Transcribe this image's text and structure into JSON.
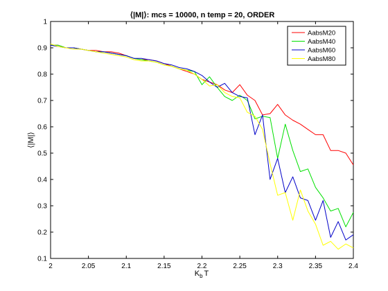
{
  "chart_data": {
    "type": "line",
    "title": "⟨|M|⟩: mcs = 10000, n temp = 20, ORDER",
    "xlabel": "K",
    "xlabel_sub": "b",
    "xlabel_suffix": "T",
    "ylabel": "⟨|M|⟩",
    "xlim": [
      2,
      2.4
    ],
    "ylim": [
      0.1,
      1
    ],
    "grid": false,
    "legend_position": "top-right",
    "x_ticks": [
      "2",
      "2.05",
      "2.1",
      "2.15",
      "2.2",
      "2.25",
      "2.3",
      "2.35",
      "2.4"
    ],
    "y_ticks": [
      "0.1",
      "0.2",
      "0.3",
      "0.4",
      "0.5",
      "0.6",
      "0.7",
      "0.8",
      "0.9",
      "1"
    ],
    "x": [
      2.0,
      2.01,
      2.02,
      2.03,
      2.04,
      2.05,
      2.06,
      2.07,
      2.08,
      2.09,
      2.1,
      2.11,
      2.12,
      2.13,
      2.14,
      2.15,
      2.16,
      2.17,
      2.18,
      2.19,
      2.2,
      2.21,
      2.22,
      2.23,
      2.24,
      2.25,
      2.26,
      2.27,
      2.28,
      2.29,
      2.3,
      2.31,
      2.32,
      2.33,
      2.34,
      2.35,
      2.36,
      2.37,
      2.38,
      2.39,
      2.4
    ],
    "series": [
      {
        "name": "AabsM20",
        "color": "#ff0000",
        "values": [
          0.91,
          0.91,
          0.9,
          0.9,
          0.895,
          0.89,
          0.89,
          0.885,
          0.885,
          0.88,
          0.87,
          0.86,
          0.855,
          0.855,
          0.85,
          0.84,
          0.83,
          0.82,
          0.81,
          0.8,
          0.78,
          0.77,
          0.76,
          0.74,
          0.73,
          0.76,
          0.72,
          0.7,
          0.645,
          0.65,
          0.685,
          0.645,
          0.625,
          0.61,
          0.59,
          0.57,
          0.57,
          0.51,
          0.51,
          0.5,
          0.455
        ]
      },
      {
        "name": "AabsM40",
        "color": "#00e000",
        "values": [
          0.91,
          0.91,
          0.9,
          0.9,
          0.895,
          0.89,
          0.885,
          0.885,
          0.88,
          0.875,
          0.87,
          0.86,
          0.855,
          0.85,
          0.845,
          0.835,
          0.83,
          0.82,
          0.815,
          0.81,
          0.76,
          0.79,
          0.75,
          0.715,
          0.7,
          0.72,
          0.7,
          0.63,
          0.64,
          0.635,
          0.48,
          0.61,
          0.51,
          0.43,
          0.44,
          0.37,
          0.33,
          0.28,
          0.29,
          0.22,
          0.275
        ]
      },
      {
        "name": "AabsM60",
        "color": "#0000c8",
        "values": [
          0.91,
          0.905,
          0.9,
          0.9,
          0.895,
          0.89,
          0.885,
          0.885,
          0.88,
          0.875,
          0.87,
          0.86,
          0.86,
          0.855,
          0.85,
          0.84,
          0.835,
          0.825,
          0.82,
          0.81,
          0.795,
          0.77,
          0.75,
          0.765,
          0.73,
          0.715,
          0.71,
          0.57,
          0.645,
          0.4,
          0.48,
          0.35,
          0.41,
          0.33,
          0.32,
          0.245,
          0.32,
          0.18,
          0.24,
          0.17,
          0.19
        ]
      },
      {
        "name": "AabsM80",
        "color": "#ffff00",
        "values": [
          0.915,
          0.905,
          0.9,
          0.895,
          0.895,
          0.89,
          0.885,
          0.88,
          0.875,
          0.87,
          0.865,
          0.855,
          0.85,
          0.85,
          0.845,
          0.835,
          0.83,
          0.82,
          0.815,
          0.8,
          0.78,
          0.755,
          0.76,
          0.73,
          0.715,
          0.71,
          0.655,
          0.64,
          0.59,
          0.46,
          0.34,
          0.35,
          0.245,
          0.36,
          0.28,
          0.23,
          0.15,
          0.165,
          0.135,
          0.155,
          0.14
        ]
      }
    ]
  }
}
